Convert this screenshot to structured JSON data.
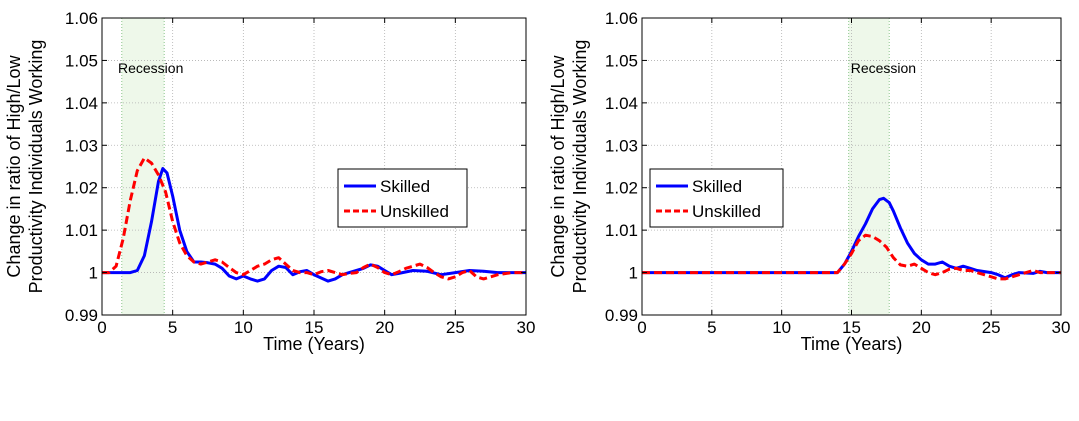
{
  "chart_data": [
    {
      "type": "line",
      "xlabel": "Time (Years)",
      "ylabel": [
        "Change in ratio of High/Low",
        "Productivity Individuals Working"
      ],
      "xlim": [
        0,
        30
      ],
      "ylim": [
        0.99,
        1.06
      ],
      "xticks": [
        "0",
        "5",
        "10",
        "15",
        "20",
        "25",
        "30"
      ],
      "yticks": [
        "0.99",
        "1",
        "1.01",
        "1.02",
        "1.03",
        "1.04",
        "1.05",
        "1.06"
      ],
      "grid": true,
      "legend_position": "center-right",
      "shaded_region": {
        "label": "Recession",
        "x": [
          1.4,
          4.4
        ]
      },
      "series": [
        {
          "name": "Skilled",
          "color": "#0000ff",
          "style": "solid",
          "points": [
            [
              0,
              1.0
            ],
            [
              1,
              1.0
            ],
            [
              2,
              1.0
            ],
            [
              2.5,
              1.0005
            ],
            [
              3,
              1.004
            ],
            [
              3.5,
              1.012
            ],
            [
              4,
              1.0215
            ],
            [
              4.3,
              1.0245
            ],
            [
              4.6,
              1.0235
            ],
            [
              5,
              1.018
            ],
            [
              5.5,
              1.01
            ],
            [
              6,
              1.005
            ],
            [
              6.5,
              1.0025
            ],
            [
              7,
              1.0025
            ],
            [
              7.5,
              1.0023
            ],
            [
              8,
              1.002
            ],
            [
              8.5,
              1.001
            ],
            [
              9,
              0.9992
            ],
            [
              9.5,
              0.9985
            ],
            [
              10,
              0.9992
            ],
            [
              10.5,
              0.9985
            ],
            [
              11,
              0.998
            ],
            [
              11.5,
              0.9985
            ],
            [
              12,
              1.0005
            ],
            [
              12.5,
              1.0015
            ],
            [
              13,
              1.0012
            ],
            [
              13.5,
              0.9995
            ],
            [
              14,
              1.0002
            ],
            [
              14.5,
              1.0005
            ],
            [
              15,
              0.9995
            ],
            [
              16,
              0.998
            ],
            [
              16.5,
              0.9985
            ],
            [
              17,
              0.9995
            ],
            [
              17.5,
              1.0
            ],
            [
              18,
              1.0005
            ],
            [
              18.5,
              1.001
            ],
            [
              19,
              1.0018
            ],
            [
              19.5,
              1.0015
            ],
            [
              20,
              1.0005
            ],
            [
              20.5,
              0.9995
            ],
            [
              21,
              0.9998
            ],
            [
              22,
              1.0005
            ],
            [
              23,
              1.0003
            ],
            [
              24,
              0.9995
            ],
            [
              25,
              1.0
            ],
            [
              26,
              1.0005
            ],
            [
              27,
              1.0003
            ],
            [
              28,
              1.0
            ],
            [
              30,
              1.0
            ]
          ]
        },
        {
          "name": "Unskilled",
          "color": "#ff0000",
          "style": "dashed",
          "points": [
            [
              0,
              1.0
            ],
            [
              0.5,
              1.0
            ],
            [
              1,
              1.0015
            ],
            [
              1.5,
              1.008
            ],
            [
              2,
              1.017
            ],
            [
              2.5,
              1.024
            ],
            [
              3,
              1.027
            ],
            [
              3.5,
              1.0258
            ],
            [
              4,
              1.023
            ],
            [
              4.5,
              1.019
            ],
            [
              5,
              1.012
            ],
            [
              5.5,
              1.007
            ],
            [
              6,
              1.004
            ],
            [
              6.5,
              1.0025
            ],
            [
              7,
              1.002
            ],
            [
              7.5,
              1.0025
            ],
            [
              8,
              1.003
            ],
            [
              8.5,
              1.0025
            ],
            [
              9,
              1.0012
            ],
            [
              9.5,
              1.0
            ],
            [
              10,
              0.9995
            ],
            [
              10.5,
              1.0005
            ],
            [
              11,
              1.0015
            ],
            [
              11.5,
              1.002
            ],
            [
              12,
              1.003
            ],
            [
              12.5,
              1.0035
            ],
            [
              13,
              1.002
            ],
            [
              13.5,
              1.0005
            ],
            [
              14,
              1.0
            ],
            [
              14.5,
              1.0
            ],
            [
              15,
              0.9995
            ],
            [
              15.5,
              1.0002
            ],
            [
              16,
              1.0005
            ],
            [
              16.5,
              1.0
            ],
            [
              17,
              0.9995
            ],
            [
              17.5,
              0.9998
            ],
            [
              18,
              1.0
            ],
            [
              18.5,
              1.0012
            ],
            [
              19,
              1.002
            ],
            [
              19.5,
              1.0012
            ],
            [
              20,
              1.0
            ],
            [
              20.5,
              0.9995
            ],
            [
              21,
              1.0002
            ],
            [
              21.5,
              1.001
            ],
            [
              22,
              1.0015
            ],
            [
              22.5,
              1.002
            ],
            [
              23,
              1.0012
            ],
            [
              23.5,
              1.0
            ],
            [
              24,
              0.999
            ],
            [
              24.5,
              0.9985
            ],
            [
              25,
              0.999
            ],
            [
              25.5,
              1.0
            ],
            [
              26,
              1.0005
            ],
            [
              26.5,
              0.999
            ],
            [
              27,
              0.9985
            ],
            [
              27.5,
              0.999
            ],
            [
              28,
              0.9995
            ],
            [
              29,
              1.0
            ],
            [
              30,
              1.0
            ]
          ]
        }
      ]
    },
    {
      "type": "line",
      "xlabel": "Time (Years)",
      "ylabel": [
        "Change in ratio of High/Low",
        "Productivity Individuals Working"
      ],
      "xlim": [
        0,
        30
      ],
      "ylim": [
        0.99,
        1.06
      ],
      "xticks": [
        "0",
        "5",
        "10",
        "15",
        "20",
        "25",
        "30"
      ],
      "yticks": [
        "0.99",
        "1",
        "1.01",
        "1.02",
        "1.03",
        "1.04",
        "1.05",
        "1.06"
      ],
      "grid": true,
      "legend_position": "center-right",
      "shaded_region": {
        "label": "Recession",
        "x": [
          14.8,
          17.7
        ]
      },
      "series": [
        {
          "name": "Skilled",
          "color": "#0000ff",
          "style": "solid",
          "points": [
            [
              0,
              1.0
            ],
            [
              14,
              1.0
            ],
            [
              14.5,
              1.002
            ],
            [
              15,
              1.005
            ],
            [
              15.5,
              1.0085
            ],
            [
              16,
              1.0115
            ],
            [
              16.5,
              1.015
            ],
            [
              17,
              1.0172
            ],
            [
              17.3,
              1.0175
            ],
            [
              17.7,
              1.0165
            ],
            [
              18,
              1.0145
            ],
            [
              18.5,
              1.0105
            ],
            [
              19,
              1.007
            ],
            [
              19.5,
              1.0045
            ],
            [
              20,
              1.003
            ],
            [
              20.5,
              1.002
            ],
            [
              21,
              1.002
            ],
            [
              21.5,
              1.0025
            ],
            [
              22,
              1.0015
            ],
            [
              22.5,
              1.001
            ],
            [
              23,
              1.0015
            ],
            [
              23.5,
              1.001
            ],
            [
              24,
              1.0005
            ],
            [
              25,
              1.0
            ],
            [
              25.5,
              0.9995
            ],
            [
              26,
              0.9988
            ],
            [
              26.5,
              0.9995
            ],
            [
              27,
              1.0
            ],
            [
              28,
              0.9998
            ],
            [
              28.5,
              1.0003
            ],
            [
              29,
              1.0
            ],
            [
              30,
              1.0
            ]
          ]
        },
        {
          "name": "Unskilled",
          "color": "#ff0000",
          "style": "dashed",
          "points": [
            [
              0,
              1.0
            ],
            [
              14,
              1.0
            ],
            [
              14.5,
              1.002
            ],
            [
              15,
              1.0045
            ],
            [
              15.5,
              1.0075
            ],
            [
              16,
              1.0088
            ],
            [
              16.5,
              1.0085
            ],
            [
              17,
              1.0075
            ],
            [
              17.5,
              1.006
            ],
            [
              18,
              1.0035
            ],
            [
              18.5,
              1.0018
            ],
            [
              19,
              1.0015
            ],
            [
              19.5,
              1.002
            ],
            [
              20,
              1.001
            ],
            [
              20.5,
              1.0
            ],
            [
              21,
              0.9995
            ],
            [
              21.5,
              1.0
            ],
            [
              22,
              1.0008
            ],
            [
              22.5,
              1.001
            ],
            [
              23,
              1.0005
            ],
            [
              23.5,
              1.0005
            ],
            [
              24,
              1.0
            ],
            [
              24.5,
              0.9995
            ],
            [
              25,
              0.999
            ],
            [
              25.5,
              0.9985
            ],
            [
              26,
              0.9985
            ],
            [
              26.5,
              0.999
            ],
            [
              27,
              0.9995
            ],
            [
              27.5,
              1.0
            ],
            [
              28,
              1.0005
            ],
            [
              28.5,
              1.0
            ],
            [
              29,
              1.0
            ],
            [
              30,
              1.0
            ]
          ]
        }
      ]
    }
  ]
}
